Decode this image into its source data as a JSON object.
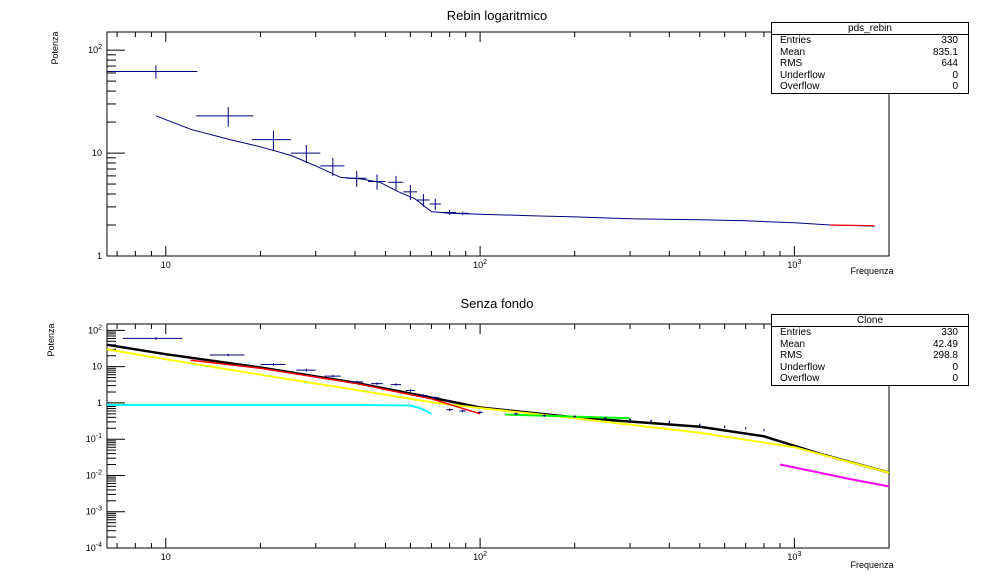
{
  "top_panel": {
    "title": "Rebin logaritmico",
    "stats": {
      "name": "pds_rebin",
      "rows": [
        {
          "label": "Entries",
          "value": "330"
        },
        {
          "label": "Mean",
          "value": "835.1"
        },
        {
          "label": "RMS",
          "value": "644"
        },
        {
          "label": "Underflow",
          "value": "0"
        },
        {
          "label": "Overflow",
          "value": "0"
        }
      ]
    }
  },
  "bottom_panel": {
    "title": "Senza fondo",
    "stats": {
      "name": "Clone",
      "rows": [
        {
          "label": "Entries",
          "value": "330"
        },
        {
          "label": "Mean",
          "value": "42.49"
        },
        {
          "label": "RMS",
          "value": "298.8"
        },
        {
          "label": "Underflow",
          "value": "0"
        },
        {
          "label": "Overflow",
          "value": "0"
        }
      ]
    }
  },
  "chart_data": [
    {
      "type": "scatter",
      "title": "Rebin logaritmico",
      "xlabel": "Frequenza",
      "ylabel": "Potenza",
      "xscale": "log",
      "yscale": "log",
      "xlim": [
        6.5,
        2000
      ],
      "ylim": [
        1,
        150
      ],
      "x_tick_labels": [
        "10",
        "10^2",
        "10^3"
      ],
      "y_tick_labels": [
        "1",
        "10",
        "10^2"
      ],
      "colors": {
        "points": "#00007f",
        "line": "#00007f",
        "fit": "#ff0000"
      },
      "series": [
        {
          "values_x": [
            9.3,
            15.8,
            22,
            28,
            34,
            40.5,
            47,
            54,
            60,
            66,
            72,
            80,
            88
          ],
          "values_y": [
            62,
            23,
            13.5,
            10,
            7.5,
            5.7,
            5.3,
            5.2,
            4.2,
            3.5,
            3.2,
            2.65,
            2.6
          ],
          "x_err_low": [
            3,
            3.3,
            3.2,
            3,
            3,
            3,
            3,
            3,
            3,
            3,
            3,
            4,
            4
          ],
          "x_err_high": [
            3.3,
            3.2,
            3,
            3,
            3,
            3,
            3,
            3,
            3,
            3,
            3,
            4,
            4
          ],
          "y_err": [
            9,
            5,
            3,
            2,
            1.5,
            1,
            0.9,
            0.8,
            0.7,
            0.5,
            0.4,
            0.15,
            0.1
          ]
        },
        {
          "values_x": [
            9.3,
            12,
            16,
            20,
            25,
            30,
            36,
            42,
            48,
            55,
            62,
            70,
            80,
            100,
            150,
            200,
            300,
            500,
            700,
            1000,
            1300,
            1800
          ],
          "values_y": [
            23,
            17,
            13.5,
            11.5,
            9.5,
            7.5,
            5.8,
            5.6,
            5.2,
            4.2,
            3.6,
            2.7,
            2.6,
            2.55,
            2.45,
            2.4,
            2.3,
            2.25,
            2.2,
            2.1,
            2.0,
            1.95
          ]
        }
      ]
    },
    {
      "type": "scatter",
      "title": "Senza fondo",
      "xlabel": "Frequenza",
      "ylabel": "Potenza",
      "xscale": "log",
      "yscale": "log",
      "xlim": [
        6.5,
        2000
      ],
      "ylim": [
        0.0001,
        150
      ],
      "x_tick_labels": [
        "10",
        "10^2",
        "10^3"
      ],
      "y_tick_labels": [
        "10^-4",
        "10^-3",
        "10^-2",
        "10^-1",
        "1",
        "10",
        "10^2"
      ],
      "colors": {
        "points": "#00007f",
        "black": "#000000",
        "red": "#ff0000",
        "yellow": "#ffff00",
        "cyan": "#00ffff",
        "green": "#00ff00",
        "magenta": "#ff00ff"
      },
      "series": [
        {
          "values_x": [
            9.3,
            15.8,
            22,
            28,
            34,
            40.5,
            47,
            54,
            60,
            66,
            72,
            80,
            88,
            100,
            130,
            160,
            200,
            250,
            300,
            350,
            400,
            500,
            600,
            700,
            800
          ],
          "values_y": [
            60,
            21,
            11.5,
            8,
            5.5,
            3.8,
            3.4,
            3.2,
            2.2,
            1.6,
            1.4,
            0.65,
            0.6,
            0.55,
            0.5,
            0.45,
            0.42,
            0.38,
            0.35,
            0.32,
            0.3,
            0.25,
            0.22,
            0.2,
            0.18
          ]
        },
        {
          "values_x": [
            6.5,
            10,
            20,
            40,
            70,
            100,
            200,
            500,
            800,
            1200,
            2000
          ],
          "values_y": [
            40,
            22,
            9.5,
            3.6,
            1.4,
            0.75,
            0.4,
            0.22,
            0.12,
            0.04,
            0.012
          ]
        },
        {
          "values_x": [
            6.5,
            10,
            20,
            40,
            70,
            100,
            200,
            500,
            1000,
            2000
          ],
          "values_y": [
            30,
            16,
            6,
            2.3,
            1.05,
            0.72,
            0.38,
            0.15,
            0.06,
            0.012
          ]
        },
        {
          "values_x": [
            6.5,
            20,
            40,
            60,
            65,
            70
          ],
          "values_y": [
            0.88,
            0.88,
            0.88,
            0.85,
            0.7,
            0.5
          ]
        },
        {
          "values_x": [
            12,
            20,
            40,
            60,
            70,
            100
          ],
          "values_y": [
            15,
            9,
            3.5,
            1.7,
            1.3,
            0.5
          ]
        },
        {
          "values_x": [
            120,
            200,
            300
          ],
          "values_y": [
            0.48,
            0.42,
            0.38
          ]
        },
        {
          "values_x": [
            900,
            1200,
            1500,
            2000
          ],
          "values_y": [
            0.02,
            0.012,
            0.008,
            0.005
          ]
        }
      ]
    }
  ]
}
